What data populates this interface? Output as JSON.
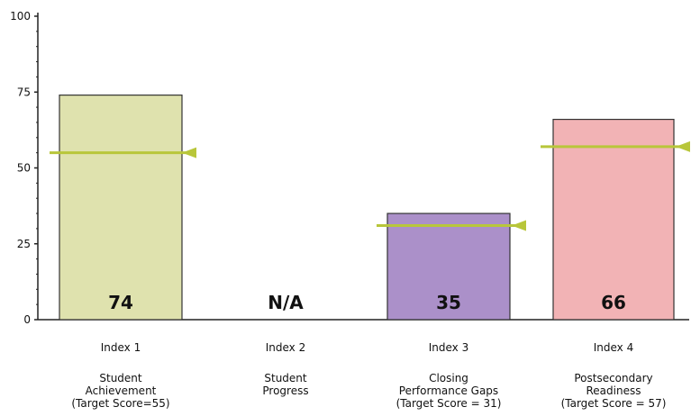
{
  "chart_data": {
    "type": "bar",
    "ylim": [
      0,
      100
    ],
    "yticks": [
      0,
      25,
      50,
      75,
      100
    ],
    "grid": false,
    "legend": "none",
    "categories": [
      {
        "index_label": "Index 1",
        "name_lines": [
          "Student",
          "Achievement"
        ],
        "target_text": "(Target Score=55)",
        "value": 74,
        "value_label": "74",
        "target": 55,
        "color": "#dfe2ae",
        "marker_style": "left"
      },
      {
        "index_label": "Index 2",
        "name_lines": [
          "Student",
          "Progress"
        ],
        "target_text": "",
        "value": null,
        "value_label": "N/A",
        "target": null,
        "color": "#ffffff",
        "marker_style": "none"
      },
      {
        "index_label": "Index 3",
        "name_lines": [
          "Closing",
          "Performance Gaps"
        ],
        "target_text": "(Target Score = 31)",
        "value": 35,
        "value_label": "35",
        "target": 31,
        "color": "#ab90c9",
        "marker_style": "right"
      },
      {
        "index_label": "Index 4",
        "name_lines": [
          "Postsecondary",
          "Readiness"
        ],
        "target_text": "(Target Score = 57)",
        "value": 66,
        "value_label": "66",
        "target": 57,
        "color": "#f2b3b5",
        "marker_style": "right"
      }
    ],
    "colors": {
      "target_line": "#b8c63a",
      "axis": "#222222",
      "bar_border": "#333333"
    }
  }
}
